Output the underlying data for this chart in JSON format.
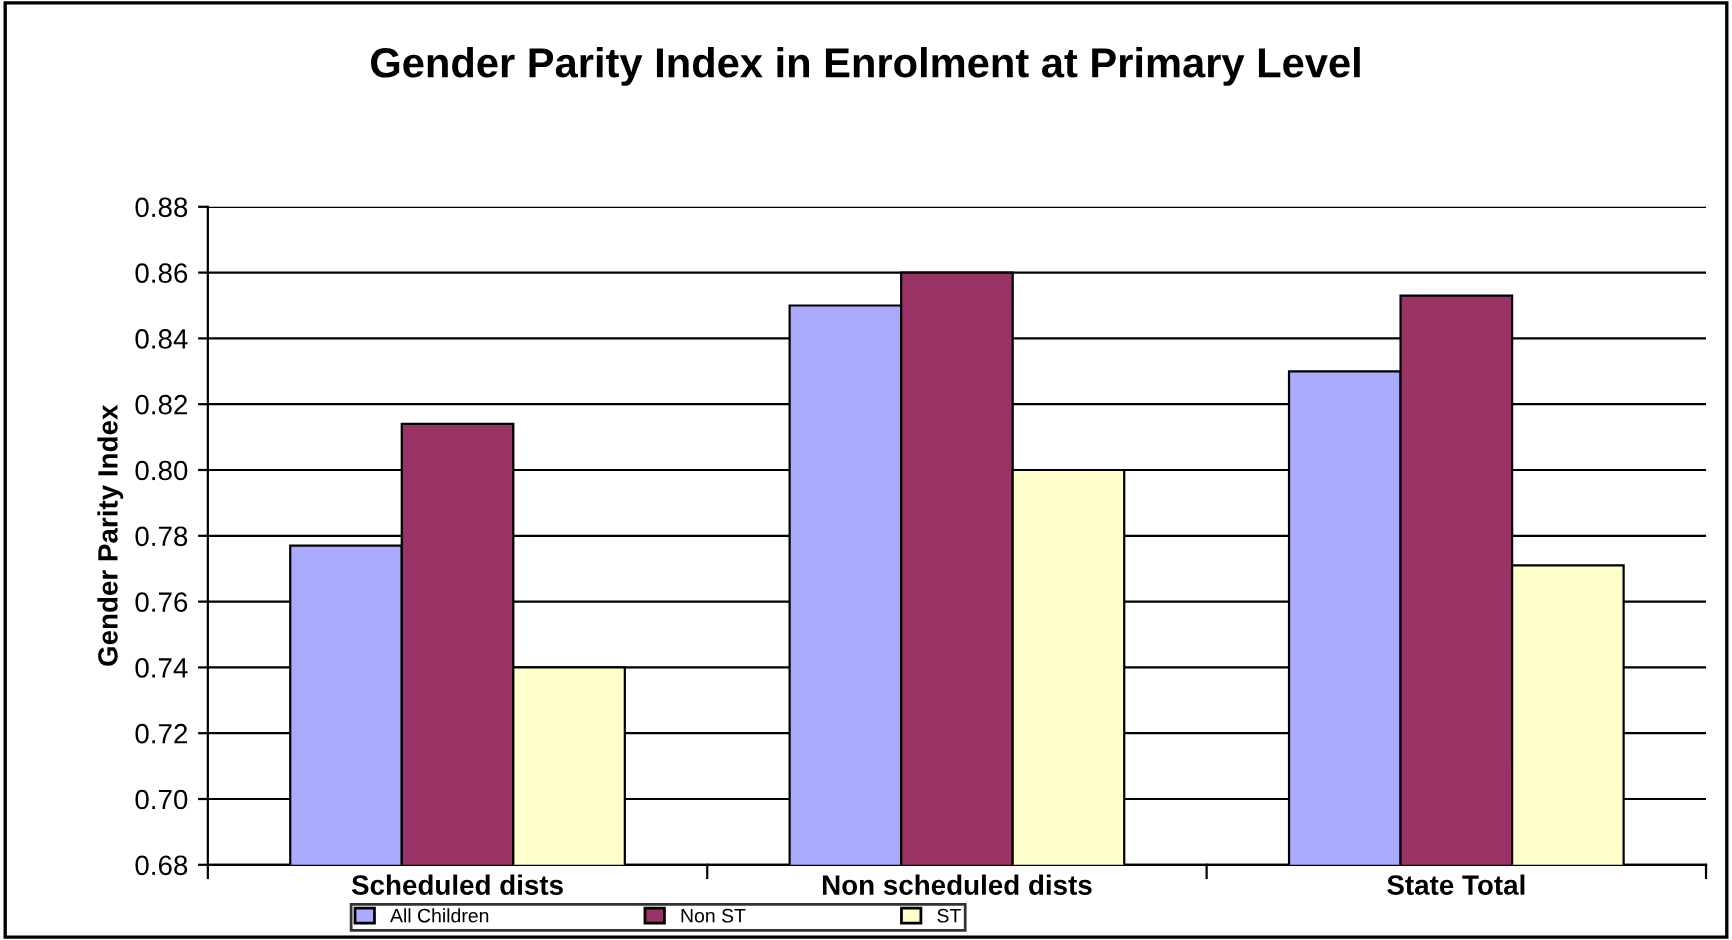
{
  "chart_data": {
    "type": "bar",
    "title": "Gender Parity Index in Enrolment at Primary Level",
    "ylabel": "Gender Parity Index",
    "categories": [
      "Scheduled dists",
      "Non scheduled dists",
      "State Total"
    ],
    "series": [
      {
        "name": "All Children",
        "color": "#aaaaff",
        "values": [
          0.777,
          0.85,
          0.83
        ]
      },
      {
        "name": "Non ST",
        "color": "#993366",
        "values": [
          0.814,
          0.86,
          0.853
        ]
      },
      {
        "name": "ST",
        "color": "#ffffcc",
        "values": [
          0.74,
          0.8,
          0.771
        ]
      }
    ],
    "ylim": [
      0.68,
      0.88
    ],
    "yticks": [
      0.68,
      {
        "value": 0.7,
        "label": "0.70"
      },
      0.72,
      0.74,
      0.76,
      0.78,
      {
        "value": 0.8,
        "label": "0.80"
      },
      0.82,
      0.84,
      0.86,
      0.88
    ],
    "grid": "y",
    "legend": "bottom"
  }
}
